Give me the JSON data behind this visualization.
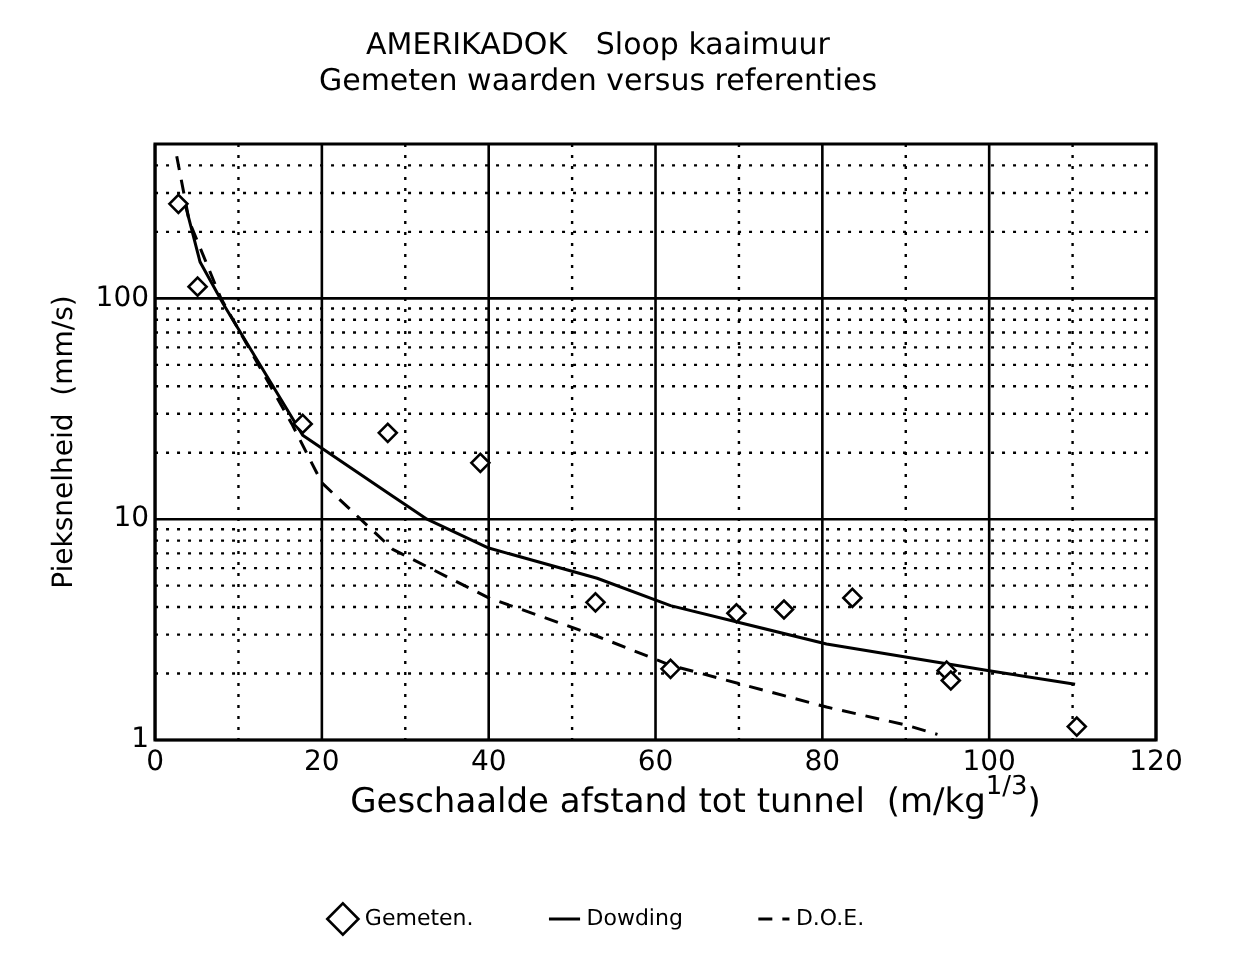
{
  "chart_data": {
    "type": "scatter",
    "title": "AMERIKADOK   Sloop kaaimuur",
    "subtitle": "Gemeten waarden versus referenties",
    "xlabel": "Geschaalde afstand tot tunnel  (m/kg$^{1/3}$)",
    "ylabel": "Pieksnelheid  (mm/s)",
    "log": "y",
    "grid": true,
    "legend": "bottom",
    "xlim": [
      0,
      120
    ],
    "xticks": [
      0,
      {
        "value": 10,
        "label": null
      },
      20,
      {
        "value": 30,
        "label": null
      },
      40,
      {
        "value": 50,
        "label": null
      },
      60,
      {
        "value": 70,
        "label": null
      },
      80,
      {
        "value": 90,
        "label": null
      },
      100,
      {
        "value": 110,
        "label": null
      },
      120
    ],
    "ylim": [
      1,
      500
    ],
    "yticks": [
      1,
      {
        "value": 2,
        "label": null
      },
      {
        "value": 3,
        "label": null
      },
      {
        "value": 4,
        "label": null
      },
      {
        "value": 5,
        "label": null
      },
      {
        "value": 6,
        "label": null
      },
      {
        "value": 7,
        "label": null
      },
      {
        "value": 8,
        "label": null
      },
      {
        "value": 9,
        "label": null
      },
      10,
      {
        "value": 20,
        "label": null
      },
      {
        "value": 30,
        "label": null
      },
      {
        "value": 40,
        "label": null
      },
      {
        "value": 50,
        "label": null
      },
      {
        "value": 60,
        "label": null
      },
      {
        "value": 70,
        "label": null
      },
      {
        "value": 80,
        "label": null
      },
      {
        "value": 90,
        "label": null
      },
      100,
      {
        "value": 200,
        "label": null
      },
      {
        "value": 300,
        "label": null
      },
      {
        "value": 400,
        "label": null
      }
    ],
    "series": [
      {
        "name": "Gemeten.",
        "type": "scatter",
        "color": "#000000",
        "marker": "diamond",
        "x": [
          2.8,
          5.1,
          17.7,
          27.9,
          39,
          52.8,
          61.8,
          69.7,
          75.4,
          83.6,
          94.9,
          95.4,
          110.5
        ],
        "values": [
          268,
          113,
          27,
          24.6,
          18,
          4.2,
          2.1,
          3.75,
          3.9,
          4.4,
          2.06,
          1.86,
          1.15
        ]
      },
      {
        "name": "Dowding",
        "type": "line",
        "color": "#000000",
        "marker": "none",
        "line_style": "solid",
        "x": [
          3.6,
          5.4,
          8.2,
          17.7,
          28.5,
          32.6,
          40,
          53,
          61.8,
          80.5,
          100,
          110.3
        ],
        "values": [
          268,
          146,
          94,
          24,
          12.7,
          10,
          7.4,
          5.4,
          4.06,
          2.72,
          2.06,
          1.79
        ]
      },
      {
        "name": "D.O.E.",
        "type": "line",
        "color": "#000000",
        "marker": "none",
        "line_style": "dashed",
        "x": [
          2.6,
          4.1,
          7.9,
          16.4,
          20,
          28.5,
          40,
          53,
          61.8,
          80.5,
          90,
          93.8
        ],
        "values": [
          440,
          223,
          100,
          27,
          14.6,
          7.3,
          4.4,
          2.95,
          2.18,
          1.41,
          1.17,
          1.06
        ]
      }
    ]
  }
}
